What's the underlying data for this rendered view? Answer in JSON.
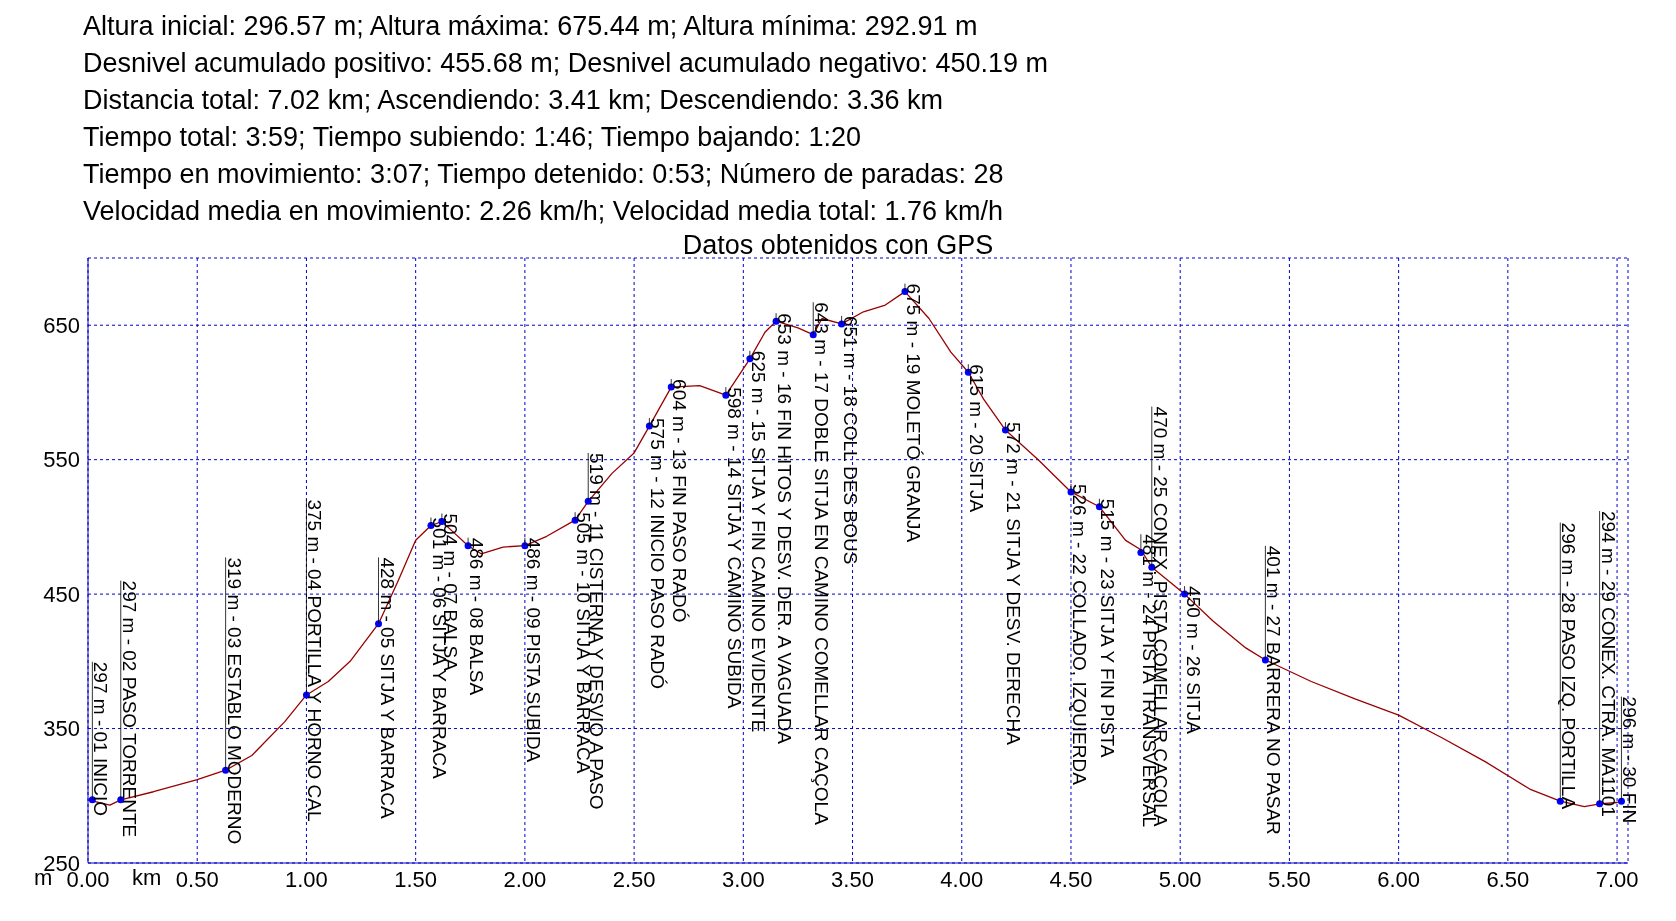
{
  "chart_data": {
    "type": "line",
    "title": "Altura inicial: 296.57 m; Altura máxima: 675.44 m; Altura mínima: 292.91 m\nDesnivel acumulado positivo: 455.68 m; Desnivel acumulado negativo: 450.19 m\nDistancia total: 7.02 km; Ascendiendo: 3.41 km; Descendiendo: 3.36 km\nTiempo total: 3:59; Tiempo subiendo: 1:46; Tiempo bajando: 1:20\nTiempo en movimiento: 3:07; Tiempo detenido: 0:53; Número de paradas: 28\nVelocidad media en movimiento: 2.26 km/h; Velocidad media total: 1.76 km/h",
    "subtitle": "Datos obtenidos con GPS",
    "xlabel": "km",
    "ylabel": "m",
    "x": [
      0,
      0.1,
      0.15,
      0.3,
      0.5,
      0.63,
      0.75,
      0.9,
      1.0,
      1.1,
      1.2,
      1.33,
      1.42,
      1.5,
      1.57,
      1.62,
      1.68,
      1.74,
      1.8,
      1.9,
      2.0,
      2.1,
      2.23,
      2.29,
      2.4,
      2.5,
      2.57,
      2.67,
      2.8,
      2.92,
      3.03,
      3.1,
      3.15,
      3.25,
      3.32,
      3.36,
      3.45,
      3.55,
      3.65,
      3.74,
      3.85,
      3.95,
      4.03,
      4.1,
      4.2,
      4.35,
      4.5,
      4.63,
      4.75,
      4.82,
      4.87,
      5.02,
      5.15,
      5.3,
      5.39,
      5.6,
      5.8,
      6.0,
      6.2,
      6.4,
      6.6,
      6.74,
      6.85,
      6.92,
      7.0,
      7.02
    ],
    "series": [
      {
        "color": "#990000",
        "values": [
          297,
          293,
          297,
          303,
          312,
          319,
          330,
          355,
          375,
          385,
          400,
          428,
          460,
          490,
          501,
          504,
          495,
          486,
          480,
          485,
          486,
          493,
          505,
          519,
          540,
          555,
          575,
          604,
          605,
          598,
          625,
          645,
          653,
          648,
          643,
          655,
          651,
          660,
          665,
          675,
          655,
          630,
          615,
          595,
          572,
          550,
          526,
          515,
          490,
          483,
          470,
          450,
          430,
          410,
          401,
          385,
          372,
          360,
          343,
          325,
          305,
          296,
          292,
          294,
          295,
          296
        ]
      }
    ],
    "xlim": [
      0,
      7.05
    ],
    "ylim": [
      250,
      700
    ],
    "xticks": [
      {
        "value": 0,
        "label": "0.00"
      },
      {
        "value": 0.5,
        "label": "0.50"
      },
      {
        "value": 1,
        "label": "1.00"
      },
      {
        "value": 1.5,
        "label": "1.50"
      },
      {
        "value": 2,
        "label": "2.00"
      },
      {
        "value": 2.5,
        "label": "2.50"
      },
      {
        "value": 3,
        "label": "3.00"
      },
      {
        "value": 3.5,
        "label": "3.50"
      },
      {
        "value": 4,
        "label": "4.00"
      },
      {
        "value": 4.5,
        "label": "4.50"
      },
      {
        "value": 5,
        "label": "5.00"
      },
      {
        "value": 5.5,
        "label": "5.50"
      },
      {
        "value": 6,
        "label": "6.00"
      },
      {
        "value": 6.5,
        "label": "6.50"
      },
      {
        "value": 7,
        "label": "7.00"
      }
    ],
    "yticks": [
      250,
      350,
      450,
      550,
      650
    ],
    "grid": true,
    "marker": "none",
    "line_style": "solid",
    "annotations": [
      {
        "text": "297 m - 01 INICIO",
        "x": 0.02,
        "y": 297
      },
      {
        "text": "297 m - 02 PASO TORRENTE",
        "x": 0.15,
        "y": 297
      },
      {
        "text": "319 m - 03 ESTABLO MODERNO",
        "x": 0.63,
        "y": 319
      },
      {
        "text": "375 m - 04 PORTILLA Y HORNO CAL",
        "x": 1.0,
        "y": 375
      },
      {
        "text": "428 m - 05 SITJA Y BARRACA",
        "x": 1.33,
        "y": 428
      },
      {
        "text": "501 m - 06 SITJA Y BARRACA",
        "x": 1.57,
        "y": 501
      },
      {
        "text": "504 m - 07 BALSA",
        "x": 1.62,
        "y": 504
      },
      {
        "text": "486 m - 08 BALSA",
        "x": 1.74,
        "y": 486
      },
      {
        "text": "486 m - 09 PISTA SUBIDA",
        "x": 2.0,
        "y": 486
      },
      {
        "text": "505 m - 10 SITJA Y BARRACA",
        "x": 2.23,
        "y": 505
      },
      {
        "text": "519 m - 11 CISTERNA Y DESVIO A PASO",
        "x": 2.29,
        "y": 519
      },
      {
        "text": "575 m - 12 INICIO PASO RADÓ",
        "x": 2.57,
        "y": 575
      },
      {
        "text": "604 m - 13 FIN PASO RADÓ",
        "x": 2.67,
        "y": 604
      },
      {
        "text": "598 m - 14 SITJA Y CAMINO SUBIDA",
        "x": 2.92,
        "y": 598
      },
      {
        "text": "625 m - 15 SITJA Y FIN CAMINO EVIDENTE",
        "x": 3.03,
        "y": 625
      },
      {
        "text": "653 m - 16 FIN HITOS Y DESV. DER. A VAGUADA",
        "x": 3.15,
        "y": 653
      },
      {
        "text": "643 m - 17 DOBLE SITJA EN CAMINO COMELLAR CAÇOLA",
        "x": 3.32,
        "y": 643
      },
      {
        "text": "651 m - 18 COLL DES BOUS",
        "x": 3.45,
        "y": 651
      },
      {
        "text": "675 m - 19 MOLETÓ GRANJA",
        "x": 3.74,
        "y": 675
      },
      {
        "text": "615 m - 20 SITJA",
        "x": 4.03,
        "y": 615
      },
      {
        "text": "572 m - 21 SITJA Y DESV. DERECHA",
        "x": 4.2,
        "y": 572
      },
      {
        "text": "526 m - 22 COLLADO, IZQUIERDA",
        "x": 4.5,
        "y": 526
      },
      {
        "text": "515 m - 23 SITJA Y FIN PISTA",
        "x": 4.63,
        "y": 515
      },
      {
        "text": "481 m - 24 PISTA TRANSVERSAL",
        "x": 4.82,
        "y": 481
      },
      {
        "text": "470 m - 25 CONEX. PISTA COMELLAR CAÇOLA",
        "x": 4.87,
        "y": 470
      },
      {
        "text": "450 m - 26 SITJA",
        "x": 5.02,
        "y": 450
      },
      {
        "text": "401 m - 27 BARRERA NO PASAR",
        "x": 5.39,
        "y": 401
      },
      {
        "text": "296 m - 28 PASO IZQ. PORTILLA",
        "x": 6.74,
        "y": 296
      },
      {
        "text": "294 m - 29 CONEX. CTRA. MA1101",
        "x": 6.92,
        "y": 294
      },
      {
        "text": "296 m - 30 FIN",
        "x": 7.02,
        "y": 296
      }
    ]
  }
}
